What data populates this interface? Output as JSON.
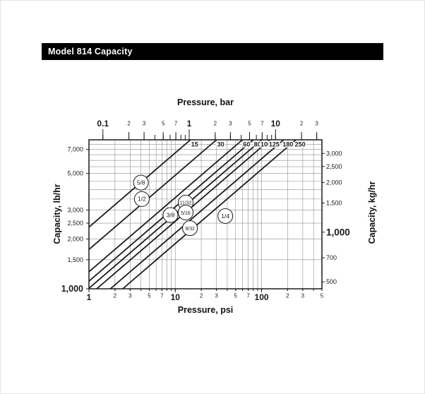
{
  "header": {
    "title": "Model 814 Capacity"
  },
  "chart_data": {
    "type": "line",
    "title": "Model 814 Capacity",
    "scale": "log-log",
    "axes": {
      "bottom": {
        "label": "Pressure, psi",
        "min": 1,
        "max": 500,
        "ticks": [
          {
            "v": 1,
            "label": "1",
            "major": true
          },
          {
            "v": 2,
            "label": "2"
          },
          {
            "v": 3,
            "label": "3"
          },
          {
            "v": 5,
            "label": "5"
          },
          {
            "v": 7,
            "label": "7"
          },
          {
            "v": 10,
            "label": "10",
            "major": true
          },
          {
            "v": 20,
            "label": "2"
          },
          {
            "v": 30,
            "label": "3"
          },
          {
            "v": 50,
            "label": "5"
          },
          {
            "v": 70,
            "label": "7"
          },
          {
            "v": 100,
            "label": "100",
            "major": true
          },
          {
            "v": 200,
            "label": "2"
          },
          {
            "v": 300,
            "label": "3"
          },
          {
            "v": 500,
            "label": "5"
          }
        ]
      },
      "top": {
        "label": "Pressure, bar",
        "psi_per_bar": 14.504,
        "ticks": [
          {
            "v": 0.1,
            "label": "0.1",
            "major": true
          },
          {
            "v": 0.2,
            "label": "2"
          },
          {
            "v": 0.3,
            "label": "3"
          },
          {
            "v": 0.5,
            "label": "5"
          },
          {
            "v": 0.7,
            "label": "7"
          },
          {
            "v": 1,
            "label": "1",
            "major": true
          },
          {
            "v": 2,
            "label": "2"
          },
          {
            "v": 3,
            "label": "3"
          },
          {
            "v": 5,
            "label": "5"
          },
          {
            "v": 7,
            "label": "7"
          },
          {
            "v": 10,
            "label": "10",
            "major": true
          },
          {
            "v": 20,
            "label": "2"
          },
          {
            "v": 30,
            "label": "3"
          }
        ],
        "comb": [
          0.1,
          0.2,
          0.3,
          0.4,
          0.5,
          0.6,
          0.7,
          0.8,
          0.9,
          1,
          2,
          3,
          4,
          5,
          6,
          7,
          8,
          9,
          10,
          20,
          30
        ]
      },
      "left": {
        "label": "Capacity, lb/hr",
        "min": 1000,
        "max": 8000,
        "ticks": [
          {
            "v": 7000,
            "label": "7,000"
          },
          {
            "v": 5000,
            "label": "5,000"
          },
          {
            "v": 3000,
            "label": "3,000"
          },
          {
            "v": 2500,
            "label": "2,500"
          },
          {
            "v": 2000,
            "label": "2,000"
          },
          {
            "v": 1500,
            "label": "1,500"
          },
          {
            "v": 1000,
            "label": "1,000",
            "major": true
          }
        ]
      },
      "right": {
        "label": "Capacity, kg/hr",
        "lb_per_kg": 2.20462,
        "ticks": [
          {
            "v": 3000,
            "label": "3,000"
          },
          {
            "v": 2500,
            "label": "2,500"
          },
          {
            "v": 2000,
            "label": "2,000"
          },
          {
            "v": 1500,
            "label": "1,500"
          },
          {
            "v": 1000,
            "label": "1,000",
            "major": true
          },
          {
            "v": 700,
            "label": "700"
          },
          {
            "v": 500,
            "label": "500"
          }
        ]
      }
    },
    "grid": {
      "x_psi": [
        1,
        2,
        3,
        4,
        5,
        6,
        7,
        8,
        9,
        10,
        20,
        30,
        40,
        50,
        60,
        70,
        80,
        90,
        100,
        200,
        300,
        400,
        500
      ],
      "y_lbhr": [
        1000,
        1500,
        2000,
        2500,
        3000,
        3500,
        4000,
        4500,
        5000,
        5500,
        6000,
        6500,
        7000,
        7500,
        8000
      ]
    },
    "capacity_lines": [
      {
        "top_label": "15",
        "p1": {
          "psi": 1,
          "lbhr": 2365
        },
        "p2": {
          "psi": 15,
          "lbhr": 8000
        }
      },
      {
        "top_label": "30",
        "p1": {
          "psi": 1,
          "lbhr": 1731
        },
        "p2": {
          "psi": 30,
          "lbhr": 8000
        }
      },
      {
        "top_label": "60",
        "p1": {
          "psi": 1,
          "lbhr": 1268
        },
        "p2": {
          "psi": 60,
          "lbhr": 8000
        }
      },
      {
        "top_label": "80",
        "p1": {
          "psi": 1,
          "lbhr": 1113
        },
        "p2": {
          "psi": 80,
          "lbhr": 8000
        }
      },
      {
        "top_label": "100",
        "p1": {
          "psi": 1,
          "lbhr": 1007
        },
        "p2": {
          "psi": 100,
          "lbhr": 8000
        }
      },
      {
        "top_label": "125",
        "p1": {
          "psi": 1.23,
          "lbhr": 1000
        },
        "p2": {
          "psi": 125,
          "lbhr": 8000
        }
      },
      {
        "top_label": "180",
        "p1": {
          "psi": 1.77,
          "lbhr": 1000
        },
        "p2": {
          "psi": 180,
          "lbhr": 8000
        }
      },
      {
        "top_label": "250",
        "p1": {
          "psi": 2.46,
          "lbhr": 1000
        },
        "p2": {
          "psi": 250,
          "lbhr": 8000
        }
      }
    ],
    "orifice_circles": [
      {
        "label": "5/8",
        "psi": 4.0,
        "lbhr": 4400
      },
      {
        "label": "1/2",
        "psi": 4.1,
        "lbhr": 3500
      },
      {
        "label": "3/8",
        "psi": 8.8,
        "lbhr": 2800
      },
      {
        "label": "11/32",
        "psi": 13.2,
        "lbhr": 3330
      },
      {
        "label": "5/16",
        "psi": 13.2,
        "lbhr": 2900
      },
      {
        "label": "9/32",
        "psi": 14.8,
        "lbhr": 2330
      },
      {
        "label": "1/4",
        "psi": 38,
        "lbhr": 2760
      }
    ],
    "colors": {
      "ink": "#1a1a1a",
      "grid": "#909090",
      "header_bg": "#000000",
      "header_fg": "#ffffff",
      "plot_bg": "#ffffff"
    }
  }
}
